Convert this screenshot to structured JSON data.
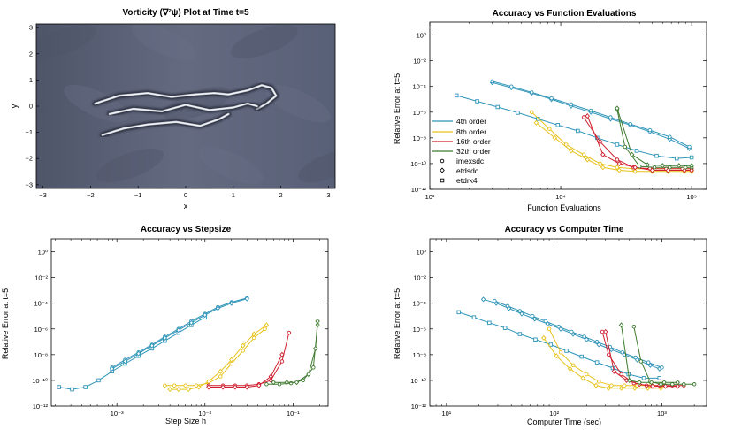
{
  "colors": {
    "o4": "#2f95b8",
    "o8": "#e8c21a",
    "o16": "#cf1f2e",
    "o32": "#3d7a2e",
    "vort_bg": "#5d6378"
  },
  "chart_data": [
    {
      "type": "heatmap",
      "title": "Vorticity (∇²ψ) Plot at Time t=5",
      "xlabel": "x",
      "ylabel": "y",
      "xlim": [
        -3.14,
        3.14
      ],
      "ylim": [
        -3.14,
        3.14
      ],
      "xticks": [
        "−3",
        "−2",
        "−1",
        "0",
        "1",
        "2",
        "3"
      ],
      "yticks": [
        "3",
        "2",
        "1",
        "0",
        "−1",
        "−2",
        "−3"
      ],
      "filaments": [
        {
          "name": "upper filament",
          "x": [
            -1.9,
            -1.4,
            -0.8,
            -0.3,
            0.2,
            0.6,
            0.9,
            1.3,
            1.6,
            1.8,
            1.9,
            1.7,
            1.5
          ],
          "y": [
            0.1,
            0.4,
            0.5,
            0.35,
            0.45,
            0.5,
            0.45,
            0.6,
            0.8,
            0.7,
            0.4,
            0.1,
            -0.1
          ]
        },
        {
          "name": "middle filament",
          "x": [
            -1.6,
            -1.1,
            -0.5,
            0.0,
            0.5,
            1.0,
            1.3,
            1.5
          ],
          "y": [
            -0.3,
            -0.1,
            -0.2,
            0.05,
            -0.15,
            -0.05,
            0.1,
            0.0
          ]
        },
        {
          "name": "lower filament",
          "x": [
            -1.75,
            -1.3,
            -0.8,
            -0.2,
            0.3,
            0.7,
            0.9
          ],
          "y": [
            -1.1,
            -0.85,
            -0.7,
            -0.6,
            -0.75,
            -0.5,
            -0.3
          ]
        }
      ]
    },
    {
      "type": "line",
      "title": "Accuracy vs Function Evaluations",
      "xlabel": "Function Evaluations",
      "ylabel": "Relative Error at t=5",
      "xscale": "log",
      "yscale": "log",
      "xlim": [
        1000,
        130000
      ],
      "ylim": [
        1e-12,
        10
      ],
      "xticks": [
        {
          "v": 1000,
          "t": "10³"
        },
        {
          "v": 10000,
          "t": "10⁴"
        },
        {
          "v": 100000,
          "t": "10⁵"
        }
      ],
      "yticks": [
        {
          "v": 1,
          "t": "10⁰"
        },
        {
          "v": 0.01,
          "t": "10⁻²"
        },
        {
          "v": 0.0001,
          "t": "10⁻⁴"
        },
        {
          "v": 1e-06,
          "t": "10⁻⁶"
        },
        {
          "v": 1e-08,
          "t": "10⁻⁸"
        },
        {
          "v": 1e-10,
          "t": "10⁻¹⁰"
        },
        {
          "v": 1e-12,
          "t": "10⁻¹²"
        }
      ],
      "legend": {
        "placement": "bottom-left",
        "orders": [
          {
            "label": "4th order",
            "color": "o4"
          },
          {
            "label": "8th order",
            "color": "o8"
          },
          {
            "label": "16th order",
            "color": "o16"
          },
          {
            "label": "32th order",
            "color": "o32"
          }
        ],
        "methods": [
          {
            "label": "imexsdc",
            "marker": "circle"
          },
          {
            "label": "etdsdc",
            "marker": "diamond"
          },
          {
            "label": "etdrk4",
            "marker": "square"
          }
        ]
      },
      "series": [
        {
          "color": "o4",
          "marker": "diamond",
          "x": [
            3000,
            4200,
            6000,
            8500,
            12000,
            17000,
            24000,
            34000,
            48000,
            68000,
            96000
          ],
          "y": [
            0.0002,
            8e-05,
            3e-05,
            1e-05,
            3e-06,
            1e-06,
            3e-07,
            1e-07,
            3e-08,
            8e-09,
            1.5e-09
          ]
        },
        {
          "color": "o4",
          "marker": "circle",
          "x": [
            3000,
            4200,
            6000,
            8500,
            12000,
            17000,
            24000,
            34000,
            48000,
            68000,
            96000
          ],
          "y": [
            0.00025,
            0.0001,
            3.5e-05,
            1.2e-05,
            4e-06,
            1.3e-06,
            4e-07,
            1.2e-07,
            4e-08,
            1.2e-08,
            2e-09
          ]
        },
        {
          "color": "o4",
          "marker": "square",
          "x": [
            1600,
            2300,
            3300,
            4700,
            6700,
            9500,
            13500,
            19000,
            27000,
            38000,
            54000,
            77000,
            100000
          ],
          "y": [
            2e-05,
            7e-06,
            2.5e-06,
            9e-07,
            3e-07,
            1e-07,
            3.5e-08,
            1e-08,
            3e-09,
            1e-09,
            4e-10,
            2.5e-10,
            3e-10
          ]
        },
        {
          "color": "o8",
          "marker": "circle",
          "x": [
            6000,
            8200,
            11000,
            15000,
            20000,
            27000,
            36000,
            48000,
            64000,
            85000,
            100000
          ],
          "y": [
            1e-06,
            5e-08,
            3e-09,
            5e-10,
            1e-10,
            5e-11,
            4e-11,
            4e-11,
            4e-11,
            4e-11,
            4e-11
          ]
        },
        {
          "color": "o8",
          "marker": "diamond",
          "x": [
            6500,
            9000,
            12000,
            16000,
            21000,
            28000,
            37000,
            50000,
            66000,
            88000,
            100000
          ],
          "y": [
            1.5e-07,
            1e-08,
            1e-09,
            2e-10,
            5e-11,
            3e-11,
            2.5e-11,
            2.5e-11,
            2.5e-11,
            2.5e-11,
            2.5e-11
          ]
        },
        {
          "color": "o16",
          "marker": "circle",
          "x": [
            15000,
            20000,
            27000,
            36000,
            48000,
            64000,
            85000,
            100000
          ],
          "y": [
            4e-07,
            5e-09,
            2e-10,
            5e-11,
            4e-11,
            4e-11,
            4e-11,
            4e-11
          ]
        },
        {
          "color": "o16",
          "marker": "diamond",
          "x": [
            16000,
            21000,
            28000,
            37000,
            50000,
            66000,
            88000,
            100000
          ],
          "y": [
            5e-07,
            5e-10,
            1e-10,
            5e-11,
            3e-11,
            3e-11,
            3e-11,
            3e-11
          ]
        },
        {
          "color": "o32",
          "marker": "circle",
          "x": [
            27000,
            31000,
            40000,
            52000,
            68000,
            90000,
            100000
          ],
          "y": [
            1.5e-06,
            2e-09,
            6e-11,
            5e-11,
            5e-11,
            5e-11,
            5e-11
          ]
        },
        {
          "color": "o32",
          "marker": "diamond",
          "x": [
            27000,
            35000,
            46000,
            60000,
            80000,
            100000
          ],
          "y": [
            2e-06,
            5e-10,
            8e-11,
            7e-11,
            7e-11,
            7e-11
          ]
        }
      ]
    },
    {
      "type": "line",
      "title": "Accuracy vs Stepsize",
      "xlabel": "Step Size h",
      "ylabel": "Relative Error at t=5",
      "xscale": "log",
      "yscale": "log",
      "xlim": [
        0.00018,
        0.25
      ],
      "ylim": [
        1e-12,
        10
      ],
      "xticks": [
        {
          "v": 0.001,
          "t": "10⁻³"
        },
        {
          "v": 0.01,
          "t": "10⁻²"
        },
        {
          "v": 0.1,
          "t": "10⁻¹"
        }
      ],
      "yticks": [
        {
          "v": 1,
          "t": "10⁰"
        },
        {
          "v": 0.01,
          "t": "10⁻²"
        },
        {
          "v": 0.0001,
          "t": "10⁻⁴"
        },
        {
          "v": 1e-06,
          "t": "10⁻⁶"
        },
        {
          "v": 1e-08,
          "t": "10⁻⁸"
        },
        {
          "v": 1e-10,
          "t": "10⁻¹⁰"
        },
        {
          "v": 1e-12,
          "t": "10⁻¹²"
        }
      ],
      "series": [
        {
          "color": "o4",
          "marker": "square",
          "x": [
            0.00022,
            0.00031,
            0.00044,
            0.00062,
            0.00088,
            0.00124,
            0.00176,
            0.0025,
            0.0035,
            0.005,
            0.007,
            0.01
          ],
          "y": [
            3e-11,
            2e-11,
            3e-11,
            1e-10,
            5e-10,
            2e-09,
            8e-09,
            3e-08,
            1.2e-07,
            5e-07,
            2e-06,
            8e-06
          ]
        },
        {
          "color": "o4",
          "marker": "circle",
          "x": [
            0.00088,
            0.00124,
            0.00176,
            0.0025,
            0.0035,
            0.005,
            0.007,
            0.01,
            0.014,
            0.02,
            0.03
          ],
          "y": [
            1e-09,
            4e-09,
            1.5e-08,
            6e-08,
            2.5e-07,
            1e-06,
            4e-06,
            1.5e-05,
            5e-05,
            0.00012,
            0.00025
          ]
        },
        {
          "color": "o4",
          "marker": "diamond",
          "x": [
            0.00088,
            0.00124,
            0.00176,
            0.0025,
            0.0035,
            0.005,
            0.007,
            0.01,
            0.014,
            0.02,
            0.03
          ],
          "y": [
            8e-10,
            3e-09,
            1.2e-08,
            5e-08,
            2e-07,
            8e-07,
            3e-06,
            1.2e-05,
            4e-05,
            0.0001,
            0.00022
          ]
        },
        {
          "color": "o8",
          "marker": "circle",
          "x": [
            0.0035,
            0.0045,
            0.006,
            0.008,
            0.011,
            0.015,
            0.02,
            0.027,
            0.036,
            0.048
          ],
          "y": [
            4e-11,
            4e-11,
            4e-11,
            4e-11,
            6e-11,
            2e-10,
            2e-09,
            2e-08,
            2e-07,
            1e-06
          ]
        },
        {
          "color": "o8",
          "marker": "diamond",
          "x": [
            0.004,
            0.005,
            0.0065,
            0.0085,
            0.011,
            0.015,
            0.02,
            0.027,
            0.036,
            0.05
          ],
          "y": [
            2e-11,
            2e-11,
            2e-11,
            3e-11,
            8e-11,
            5e-10,
            4e-09,
            5e-08,
            4e-07,
            2e-06
          ]
        },
        {
          "color": "o16",
          "marker": "circle",
          "x": [
            0.011,
            0.016,
            0.022,
            0.03,
            0.041,
            0.056,
            0.075,
            0.09
          ],
          "y": [
            4e-11,
            4e-11,
            4e-11,
            4e-11,
            5e-11,
            1e-10,
            3e-09,
            5e-07
          ]
        },
        {
          "color": "o16",
          "marker": "diamond",
          "x": [
            0.011,
            0.016,
            0.022,
            0.03,
            0.041,
            0.056,
            0.075
          ],
          "y": [
            3e-11,
            3e-11,
            3e-11,
            3e-11,
            4e-11,
            2e-10,
            1e-08
          ]
        },
        {
          "color": "o32",
          "marker": "circle",
          "x": [
            0.05,
            0.07,
            0.095,
            0.13,
            0.17,
            0.19
          ],
          "y": [
            5e-11,
            5e-11,
            6e-11,
            1e-10,
            1e-09,
            2e-06
          ]
        },
        {
          "color": "o32",
          "marker": "diamond",
          "x": [
            0.06,
            0.085,
            0.11,
            0.15,
            0.18,
            0.19
          ],
          "y": [
            7e-11,
            7e-11,
            7e-11,
            3e-10,
            3e-08,
            4e-06
          ]
        }
      ]
    },
    {
      "type": "line",
      "title": "Accuracy vs Computer Time",
      "xlabel": "Computer Time (sec)",
      "ylabel": "Relative Error at t=5",
      "xscale": "log",
      "yscale": "log",
      "xlim": [
        7,
        2600
      ],
      "ylim": [
        1e-12,
        10
      ],
      "xticks": [
        {
          "v": 10,
          "t": "10¹"
        },
        {
          "v": 100,
          "t": "10²"
        },
        {
          "v": 1000,
          "t": "10³"
        }
      ],
      "yticks": [
        {
          "v": 1,
          "t": "10⁰"
        },
        {
          "v": 0.01,
          "t": "10⁻²"
        },
        {
          "v": 0.0001,
          "t": "10⁻⁴"
        },
        {
          "v": 1e-06,
          "t": "10⁻⁶"
        },
        {
          "v": 1e-08,
          "t": "10⁻⁸"
        },
        {
          "v": 1e-10,
          "t": "10⁻¹⁰"
        },
        {
          "v": 1e-12,
          "t": "10⁻¹²"
        }
      ],
      "series": [
        {
          "color": "o4",
          "marker": "diamond",
          "x": [
            22,
            29,
            38,
            50,
            66,
            87,
            115,
            150,
            200,
            260,
            340,
            450,
            590,
            780,
            950
          ],
          "y": [
            0.0002,
            0.0001,
            4e-05,
            1.5e-05,
            6e-06,
            2.5e-06,
            1e-06,
            4e-07,
            1.5e-07,
            6e-08,
            2.5e-08,
            1e-08,
            4e-09,
            1.5e-09,
            8e-10
          ]
        },
        {
          "color": "o4",
          "marker": "circle",
          "x": [
            28,
            37,
            48,
            63,
            83,
            110,
            145,
            190,
            250,
            330,
            430,
            570,
            750,
            1000
          ],
          "y": [
            0.00015,
            6e-05,
            2.5e-05,
            1e-05,
            4e-06,
            1.5e-06,
            6e-07,
            2.5e-07,
            1e-07,
            4e-08,
            1.5e-08,
            6e-09,
            2.5e-09,
            1e-09
          ]
        },
        {
          "color": "o4",
          "marker": "square",
          "x": [
            13,
            18,
            25,
            35,
            48,
            67,
            93,
            130,
            180,
            250,
            350,
            490,
            680,
            950
          ],
          "y": [
            2e-05,
            8e-06,
            3e-06,
            1.2e-06,
            4e-07,
            1.5e-07,
            6e-08,
            2e-08,
            7e-09,
            2.5e-09,
            9e-10,
            3e-10,
            1.5e-10,
            1.5e-10
          ]
        },
        {
          "color": "o8",
          "marker": "circle",
          "x": [
            90,
            115,
            150,
            200,
            260,
            340,
            450,
            590,
            780,
            1000
          ],
          "y": [
            1e-06,
            1.5e-08,
            1.5e-09,
            3e-10,
            8e-11,
            4e-11,
            4e-11,
            4e-11,
            4e-11,
            4e-11
          ]
        },
        {
          "color": "o8",
          "marker": "diamond",
          "x": [
            80,
            105,
            140,
            185,
            245,
            320,
            420,
            560,
            740,
            980
          ],
          "y": [
            2e-07,
            8e-09,
            8e-10,
            1.5e-10,
            4e-11,
            2.5e-11,
            2.5e-11,
            2.5e-11,
            2.5e-11,
            2.5e-11
          ]
        },
        {
          "color": "o16",
          "marker": "circle",
          "x": [
            280,
            320,
            420,
            550,
            720,
            950,
            1250,
            1600
          ],
          "y": [
            6e-07,
            1e-08,
            3e-10,
            6e-11,
            4e-11,
            4e-11,
            4e-11,
            4e-11
          ]
        },
        {
          "color": "o16",
          "marker": "diamond",
          "x": [
            300,
            360,
            470,
            620,
            820,
            1080,
            1400
          ],
          "y": [
            6e-07,
            5e-10,
            1e-10,
            5e-11,
            3.5e-11,
            3.5e-11,
            3.5e-11
          ]
        },
        {
          "color": "o32",
          "marker": "circle",
          "x": [
            550,
            640,
            780,
            980,
            1250,
            1600,
            2000
          ],
          "y": [
            1.5e-06,
            3e-09,
            8e-11,
            5e-11,
            5e-11,
            5e-11,
            5e-11
          ]
        },
        {
          "color": "o32",
          "marker": "diamond",
          "x": [
            420,
            500,
            620,
            800,
            1050,
            1400
          ],
          "y": [
            2e-06,
            1e-10,
            7e-11,
            7e-11,
            7e-11,
            7e-11
          ]
        }
      ]
    }
  ]
}
